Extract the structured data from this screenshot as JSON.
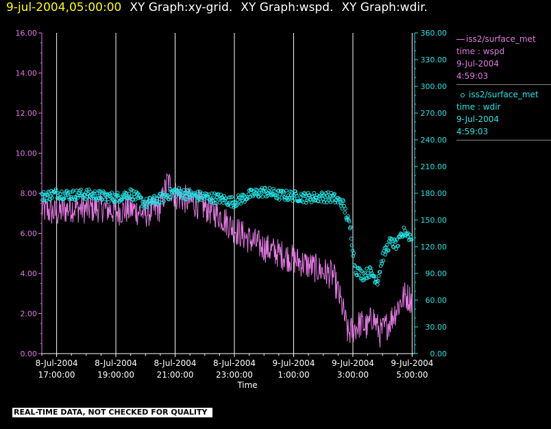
{
  "header": {
    "timestamp": "9-jul-2004,05:00:00",
    "graphs": [
      "XY Graph:xy-grid.",
      "XY Graph:wspd.",
      "XY Graph:wdir."
    ]
  },
  "legend": [
    {
      "series": "wspd",
      "symbol": "line",
      "color": "#e27ae2",
      "lines": [
        "iss2/surface_met",
        "time : wspd",
        "9-Jul-2004",
        "4:59:03"
      ]
    },
    {
      "series": "wdir",
      "symbol": "circle",
      "color": "#22e6e6",
      "lines": [
        "iss2/surface_met",
        "time : wdir",
        "9-Jul-2004",
        "4:59:03"
      ]
    }
  ],
  "footer_note": "REAL-TIME DATA, NOT CHECKED FOR QUALITY",
  "chart_data": {
    "type": "line",
    "xlabel": "Time",
    "xlim": [
      "2004-07-08T16:30:00",
      "2004-07-09T05:05:00"
    ],
    "x_ticks": [
      {
        "date": "8-Jul-2004",
        "time": "17:00:00"
      },
      {
        "date": "8-Jul-2004",
        "time": "19:00:00"
      },
      {
        "date": "8-Jul-2004",
        "time": "21:00:00"
      },
      {
        "date": "8-Jul-2004",
        "time": "23:00:00"
      },
      {
        "date": "9-Jul-2004",
        "time": "1:00:00"
      },
      {
        "date": "9-Jul-2004",
        "time": "3:00:00"
      },
      {
        "date": "9-Jul-2004",
        "time": "5:00:00"
      }
    ],
    "left_axis": {
      "color": "#e27ae2",
      "ylim": [
        0,
        16
      ],
      "ticks": [
        "0.00",
        "2.00",
        "4.00",
        "6.00",
        "8.00",
        "10.00",
        "12.00",
        "14.00",
        "16.00"
      ]
    },
    "right_axis": {
      "color": "#22e6e6",
      "ylim": [
        0,
        360
      ],
      "ticks": [
        "0.00",
        "30.00",
        "60.00",
        "90.00",
        "120.00",
        "150.00",
        "180.00",
        "210.00",
        "240.00",
        "270.00",
        "300.00",
        "330.00",
        "360.00"
      ]
    },
    "vertical_grid": true,
    "series": [
      {
        "name": "wspd",
        "axis": "left",
        "style": "line",
        "color": "#e27ae2",
        "x": [
          "2004-07-08T16:30:00",
          "2004-07-08T17:00:00",
          "2004-07-08T17:30:00",
          "2004-07-08T18:00:00",
          "2004-07-08T18:30:00",
          "2004-07-08T19:00:00",
          "2004-07-08T19:30:00",
          "2004-07-08T20:00:00",
          "2004-07-08T20:30:00",
          "2004-07-08T20:45:00",
          "2004-07-08T21:00:00",
          "2004-07-08T21:30:00",
          "2004-07-08T22:00:00",
          "2004-07-08T22:30:00",
          "2004-07-08T23:00:00",
          "2004-07-08T23:30:00",
          "2004-07-09T00:00:00",
          "2004-07-09T00:30:00",
          "2004-07-09T01:00:00",
          "2004-07-09T01:30:00",
          "2004-07-09T02:00:00",
          "2004-07-09T02:20:00",
          "2004-07-09T02:40:00",
          "2004-07-09T02:50:00",
          "2004-07-09T03:00:00",
          "2004-07-09T03:15:00",
          "2004-07-09T03:30:00",
          "2004-07-09T03:40:00",
          "2004-07-09T03:55:00",
          "2004-07-09T04:15:00",
          "2004-07-09T04:30:00",
          "2004-07-09T04:45:00",
          "2004-07-09T05:00:00"
        ],
        "values": [
          7.2,
          7.0,
          7.3,
          7.2,
          7.3,
          7.1,
          7.2,
          7.0,
          7.3,
          8.6,
          7.9,
          7.6,
          7.3,
          6.9,
          6.2,
          5.7,
          5.3,
          5.0,
          4.7,
          4.4,
          4.1,
          3.9,
          2.2,
          1.0,
          1.2,
          1.5,
          1.3,
          1.9,
          1.0,
          1.6,
          2.3,
          2.9,
          2.7
        ],
        "noise": 0.75
      },
      {
        "name": "wdir",
        "axis": "right",
        "style": "circles",
        "color": "#22e6e6",
        "x": [
          "2004-07-08T16:30:00",
          "2004-07-08T17:00:00",
          "2004-07-08T17:30:00",
          "2004-07-08T18:00:00",
          "2004-07-08T18:30:00",
          "2004-07-08T19:00:00",
          "2004-07-08T19:30:00",
          "2004-07-08T20:00:00",
          "2004-07-08T20:30:00",
          "2004-07-08T21:00:00",
          "2004-07-08T21:30:00",
          "2004-07-08T22:00:00",
          "2004-07-08T22:30:00",
          "2004-07-08T23:00:00",
          "2004-07-08T23:30:00",
          "2004-07-09T00:00:00",
          "2004-07-09T00:30:00",
          "2004-07-09T01:00:00",
          "2004-07-09T01:30:00",
          "2004-07-09T02:00:00",
          "2004-07-09T02:20:00",
          "2004-07-09T02:40:00",
          "2004-07-09T02:55:00",
          "2004-07-09T03:05:00",
          "2004-07-09T03:20:00",
          "2004-07-09T03:35:00",
          "2004-07-09T03:50:00",
          "2004-07-09T04:00:00",
          "2004-07-09T04:15:00",
          "2004-07-09T04:30:00",
          "2004-07-09T04:45:00",
          "2004-07-09T05:00:00"
        ],
        "values": [
          176,
          180,
          178,
          179,
          177,
          175,
          180,
          168,
          174,
          182,
          178,
          176,
          174,
          170,
          178,
          182,
          178,
          177,
          175,
          176,
          175,
          168,
          140,
          95,
          88,
          92,
          82,
          108,
          125,
          122,
          138,
          128
        ],
        "noise": 6
      }
    ]
  }
}
